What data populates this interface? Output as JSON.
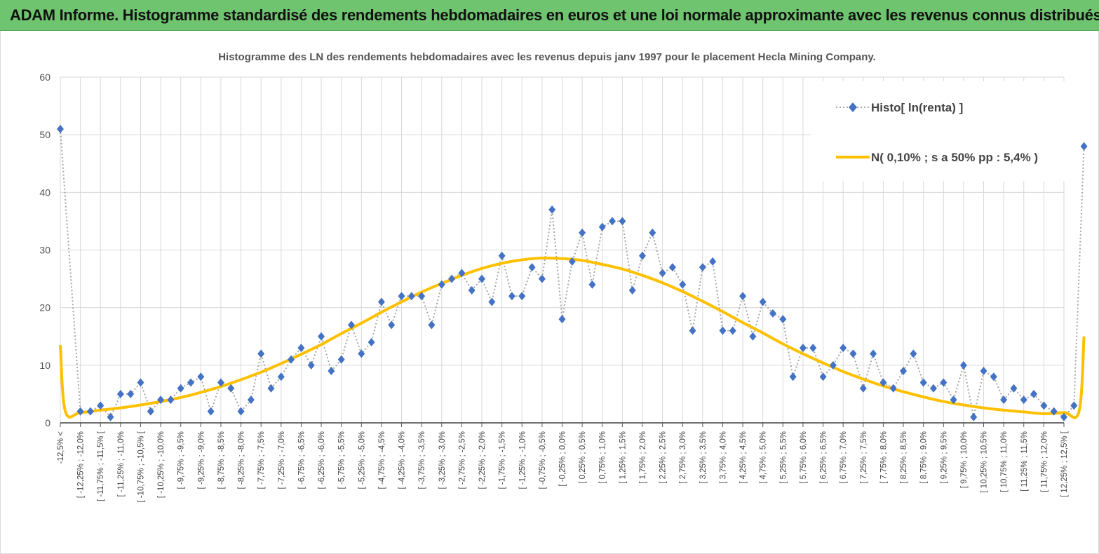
{
  "header": {
    "title": "ADAM Informe. Histogramme standardisé des rendements hebdomadaires en euros et une loi normale approximante avec les revenus connus distribués"
  },
  "colors": {
    "banner": "#6fc46f",
    "histo_marker": "#4472c4",
    "histo_line": "#a6a6a6",
    "normal_line": "#ffc000",
    "grid": "#d9d9d9"
  },
  "chart_data": {
    "type": "line",
    "title": "Histogramme  des LN des rendements hebdomadaires avec les revenus depuis janv 1997 pour le placement Hecla Mining Company.",
    "xlabel": "",
    "ylabel": "",
    "ylim": [
      0,
      60
    ],
    "yticks": [
      0,
      10,
      20,
      30,
      40,
      50,
      60
    ],
    "grid": true,
    "legend_position": "top-right",
    "categories": [
      "-12,5% <",
      "[ -12,25% ; -12,0%",
      "[ -11,75% ; -11,5% [",
      "[ -11,25% ; -11,0%",
      "[ -10,75% ; -10,5% [",
      "[ -10,25% ; -10,0%",
      "[ -9,75% ; -9,5%",
      "[ -9,25% ; -9,0%",
      "[ -8,75% ; -8,5%",
      "[ -8,25% ; -8,0%",
      "[ -7,75% ; -7,5%",
      "[ -7,25% ; -7,0%",
      "[ -6,75% ; -6,5%",
      "[ -6,25% ; -6,0%",
      "[ -5,75% ; -5,5%",
      "[ -5,25% ; -5,0%",
      "[ -4,75% ; -4,5%",
      "[ -4,25% ; -4,0%",
      "[ -3,75% ; -3,5%",
      "[ -3,25% ; -3,0%",
      "[ -2,75% ; -2,5%",
      "[ -2,25% ; -2,0%",
      "[ -1,75% ; -1,5%",
      "[ -1,25% ; -1,0%",
      "[ -0,75% ; -0,5%",
      "[ -0,25% ; 0,0%",
      "[ 0,25% ; 0,5%",
      "[ 0,75% ; 1,0%",
      "[ 1,25% ; 1,5%",
      "[ 1,75% ; 2,0%",
      "[ 2,25% ; 2,5%",
      "[ 2,75% ; 3,0%",
      "[ 3,25% ; 3,5%",
      "[ 3,75% ; 4,0%",
      "[ 4,25% ; 4,5%",
      "[ 4,75% ; 5,0%",
      "[ 5,25% ; 5,5%",
      "[ 5,75% ; 6,0%",
      "[ 6,25% ; 6,5%",
      "[ 6,75% ; 7,0%",
      "[ 7,25% ; 7,5%",
      "[ 7,75% ; 8,0%",
      "[ 8,25% ; 8,5%",
      "[ 8,75% ; 9,0%",
      "[ 9,25% ; 9,5%",
      "[ 9,75% ; 10,0%",
      "[ 10,25% ; 10,5%",
      "[ 10,75% ; 11,0%",
      "[ 11,25% ; 11,5%",
      "[ 11,75% ; 12,0%",
      "[ 12,25% ; 12,5% ["
    ],
    "series": [
      {
        "name": "Histo[ ln(renta) ]",
        "style": "diamond-markers-dotted-line",
        "x": [
          0,
          1,
          1.5,
          2,
          2.5,
          3,
          3.5,
          4,
          4.5,
          5,
          5.5,
          6,
          6.5,
          7,
          7.5,
          8,
          8.5,
          9,
          9.5,
          10,
          10.5,
          11,
          11.5,
          12,
          12.5,
          13,
          13.5,
          14,
          14.5,
          15,
          15.5,
          16,
          16.5,
          17,
          17.5,
          18,
          18.5,
          19,
          19.5,
          20,
          20.5,
          21,
          21.5,
          22,
          22.5,
          23,
          23.5,
          24,
          24.5,
          25,
          25.5,
          26,
          26.5,
          27,
          27.5,
          28,
          28.5,
          29,
          29.5,
          30,
          30.5,
          31,
          31.5,
          32,
          32.5,
          33,
          33.5,
          34,
          34.5,
          35,
          35.5,
          36,
          36.5,
          37,
          37.5,
          38,
          38.5,
          39,
          39.5,
          40,
          40.5,
          41,
          41.5,
          42,
          42.5,
          43,
          43.5,
          44,
          44.5,
          45,
          45.5,
          46,
          46.5,
          47,
          47.5,
          48,
          48.5,
          49,
          49.5,
          50,
          50.5,
          51
        ],
        "values": [
          51,
          2,
          2,
          3,
          1,
          5,
          5,
          7,
          2,
          4,
          4,
          6,
          7,
          8,
          2,
          7,
          6,
          2,
          4,
          12,
          6,
          8,
          11,
          13,
          10,
          15,
          9,
          11,
          17,
          12,
          14,
          21,
          17,
          22,
          22,
          22,
          17,
          24,
          25,
          26,
          23,
          25,
          21,
          29,
          22,
          22,
          27,
          25,
          37,
          18,
          28,
          33,
          24,
          34,
          35,
          35,
          23,
          29,
          33,
          26,
          27,
          24,
          16,
          27,
          28,
          16,
          16,
          22,
          15,
          21,
          19,
          18,
          8,
          13,
          13,
          8,
          10,
          13,
          12,
          6,
          12,
          7,
          6,
          9,
          12,
          7,
          6,
          7,
          4,
          10,
          1,
          9,
          8,
          4,
          6,
          4,
          5,
          3,
          2,
          1,
          3,
          48
        ]
      },
      {
        "name": "N( 0,10% ; s a 50% pp : 5,4% )",
        "style": "solid-line",
        "x": [
          0,
          0.25,
          1,
          2,
          3,
          4,
          5,
          6,
          7,
          8,
          9,
          10,
          11,
          12,
          13,
          14,
          15,
          16,
          17,
          18,
          19,
          20,
          21,
          22,
          23,
          24,
          25,
          26,
          27,
          28,
          29,
          30,
          31,
          32,
          33,
          34,
          35,
          36,
          37,
          38,
          39,
          40,
          41,
          42,
          43,
          44,
          45,
          46,
          47,
          48,
          49,
          50,
          50.75,
          51
        ],
        "values": [
          13.5,
          2,
          1.8,
          2.2,
          2.6,
          3.1,
          3.7,
          4.4,
          5.3,
          6.3,
          7.5,
          8.8,
          10.3,
          11.9,
          13.6,
          15.5,
          17.3,
          19.2,
          21,
          22.7,
          24.2,
          25.6,
          26.8,
          27.7,
          28.3,
          28.6,
          28.5,
          28.2,
          27.5,
          26.7,
          25.6,
          24.3,
          22.8,
          21.1,
          19.3,
          17.4,
          15.6,
          13.7,
          12,
          10.4,
          8.9,
          7.6,
          6.4,
          5.4,
          4.5,
          3.7,
          3.1,
          2.6,
          2.2,
          1.9,
          1.6,
          1.8,
          2,
          15
        ]
      }
    ]
  }
}
